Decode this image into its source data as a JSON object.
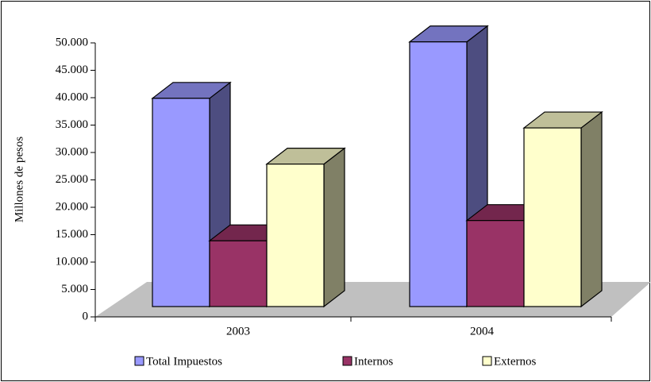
{
  "chart_data": {
    "type": "bar3d",
    "y_label": "Millones de pesos",
    "categories": [
      "2003",
      "2004"
    ],
    "series": [
      {
        "name": "Total Impuestos",
        "color": "#9999ff",
        "values": [
          38000,
          48300
        ]
      },
      {
        "name": "Internos",
        "color": "#993366",
        "values": [
          12000,
          15700
        ]
      },
      {
        "name": "Externos",
        "color": "#ffffcc",
        "values": [
          26000,
          32600
        ]
      }
    ],
    "ylim": [
      0,
      50000
    ],
    "yticks": [
      0,
      {
        "value": 5000,
        "label": "5.000"
      },
      {
        "value": 10000,
        "label": "10.000"
      },
      {
        "value": 15000,
        "label": "15.000"
      },
      {
        "value": 20000,
        "label": "20.000"
      },
      {
        "value": 25000,
        "label": "25.000"
      },
      {
        "value": 30000,
        "label": "30.000"
      },
      {
        "value": 35000,
        "label": "35.000"
      },
      {
        "value": 40000,
        "label": "40.000"
      },
      {
        "value": 45000,
        "label": "45.000"
      },
      {
        "value": 50000,
        "label": "50.000"
      }
    ],
    "legend": "bottom"
  }
}
